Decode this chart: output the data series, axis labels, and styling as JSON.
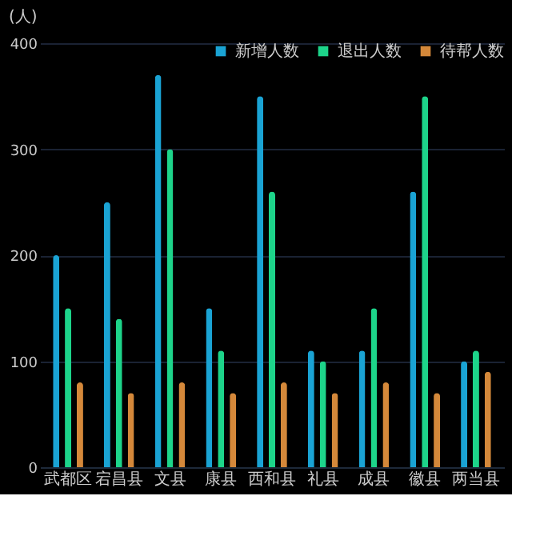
{
  "chart_data": {
    "type": "bar",
    "ylabel": "(人)",
    "categories": [
      "武都区",
      "宕昌县",
      "文县",
      "康县",
      "西和县",
      "礼县",
      "成县",
      "徽县",
      "两当县"
    ],
    "series": [
      {
        "name": "新增人数",
        "color": "#1aa3d4",
        "values": [
          200,
          250,
          370,
          150,
          350,
          110,
          110,
          260,
          100
        ]
      },
      {
        "name": "退出人数",
        "color": "#1dd48a",
        "values": [
          150,
          140,
          300,
          110,
          260,
          100,
          150,
          350,
          110
        ]
      },
      {
        "name": "待帮人数",
        "color": "#d4883a",
        "values": [
          80,
          70,
          80,
          70,
          80,
          70,
          80,
          70,
          90
        ]
      }
    ],
    "ylim": [
      0,
      400
    ],
    "yticks": [
      0,
      100,
      200,
      300,
      400
    ],
    "grid": "y",
    "legend": "top right"
  }
}
